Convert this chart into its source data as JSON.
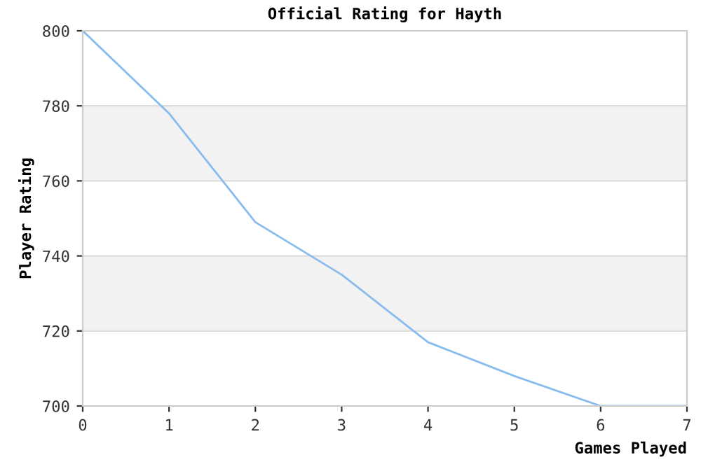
{
  "chart_data": {
    "type": "line",
    "title": "Official Rating for Hayth",
    "xlabel": "Games Played",
    "ylabel": "Player Rating",
    "x": [
      0,
      1,
      2,
      3,
      4,
      5,
      6,
      7
    ],
    "series": [
      {
        "color": "#88bbee",
        "values": [
          800,
          778,
          749,
          735,
          717,
          708,
          700,
          700
        ]
      }
    ],
    "xlim": [
      0,
      7
    ],
    "xticks": [
      0,
      1,
      2,
      3,
      4,
      5,
      6,
      7
    ],
    "ylim": [
      700,
      800
    ],
    "yticks": [
      700,
      720,
      740,
      760,
      780,
      800
    ],
    "grid": "y",
    "bands": [
      {
        "axis": "y",
        "from": 760,
        "to": 780,
        "color": "#f2f2f2"
      },
      {
        "axis": "y",
        "from": 720,
        "to": 740,
        "color": "#f2f2f2"
      }
    ]
  }
}
